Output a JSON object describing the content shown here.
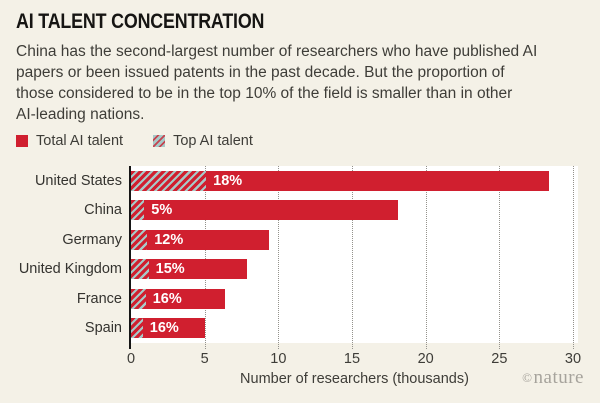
{
  "header": {
    "title": "AI TALENT CONCENTRATION",
    "subtitle_lines": [
      "China has the second-largest number of researchers who have published AI",
      "papers or been issued patents in the past decade. But the proportion of",
      "those considered to be in the top 10% of the field is smaller than in other",
      "AI-leading nations."
    ]
  },
  "legend": {
    "total_label": "Total AI talent",
    "top_label": "Top AI talent"
  },
  "chart_data": {
    "type": "bar",
    "orientation": "horizontal",
    "title": "AI TALENT CONCENTRATION",
    "categories": [
      "United States",
      "China",
      "Germany",
      "United Kingdom",
      "France",
      "Spain"
    ],
    "series": [
      {
        "name": "Total AI talent",
        "values": [
          28.4,
          18.1,
          9.4,
          7.9,
          6.4,
          5.0
        ]
      },
      {
        "name": "Top AI talent",
        "values": [
          5.1,
          0.9,
          1.1,
          1.2,
          1.0,
          0.8
        ]
      }
    ],
    "top_share_labels": [
      "18%",
      "5%",
      "12%",
      "15%",
      "16%",
      "16%"
    ],
    "xlabel": "Number of researchers (thousands)",
    "xlim": [
      0,
      30
    ],
    "xticks": [
      0,
      5,
      10,
      15,
      20,
      25,
      30
    ],
    "grid": "dotted-vertical",
    "legend_position": "top-left"
  },
  "footer": {
    "credit_symbol": "©",
    "credit_name": "nature"
  },
  "colors": {
    "accent_red": "#d01f2f",
    "hatch_teal": "#a7c9c8",
    "background": "#f4f1e7",
    "plot_background": "#ffffff",
    "text": "#3e3d38",
    "gridline": "#94928c",
    "credit": "#a6a39c"
  }
}
